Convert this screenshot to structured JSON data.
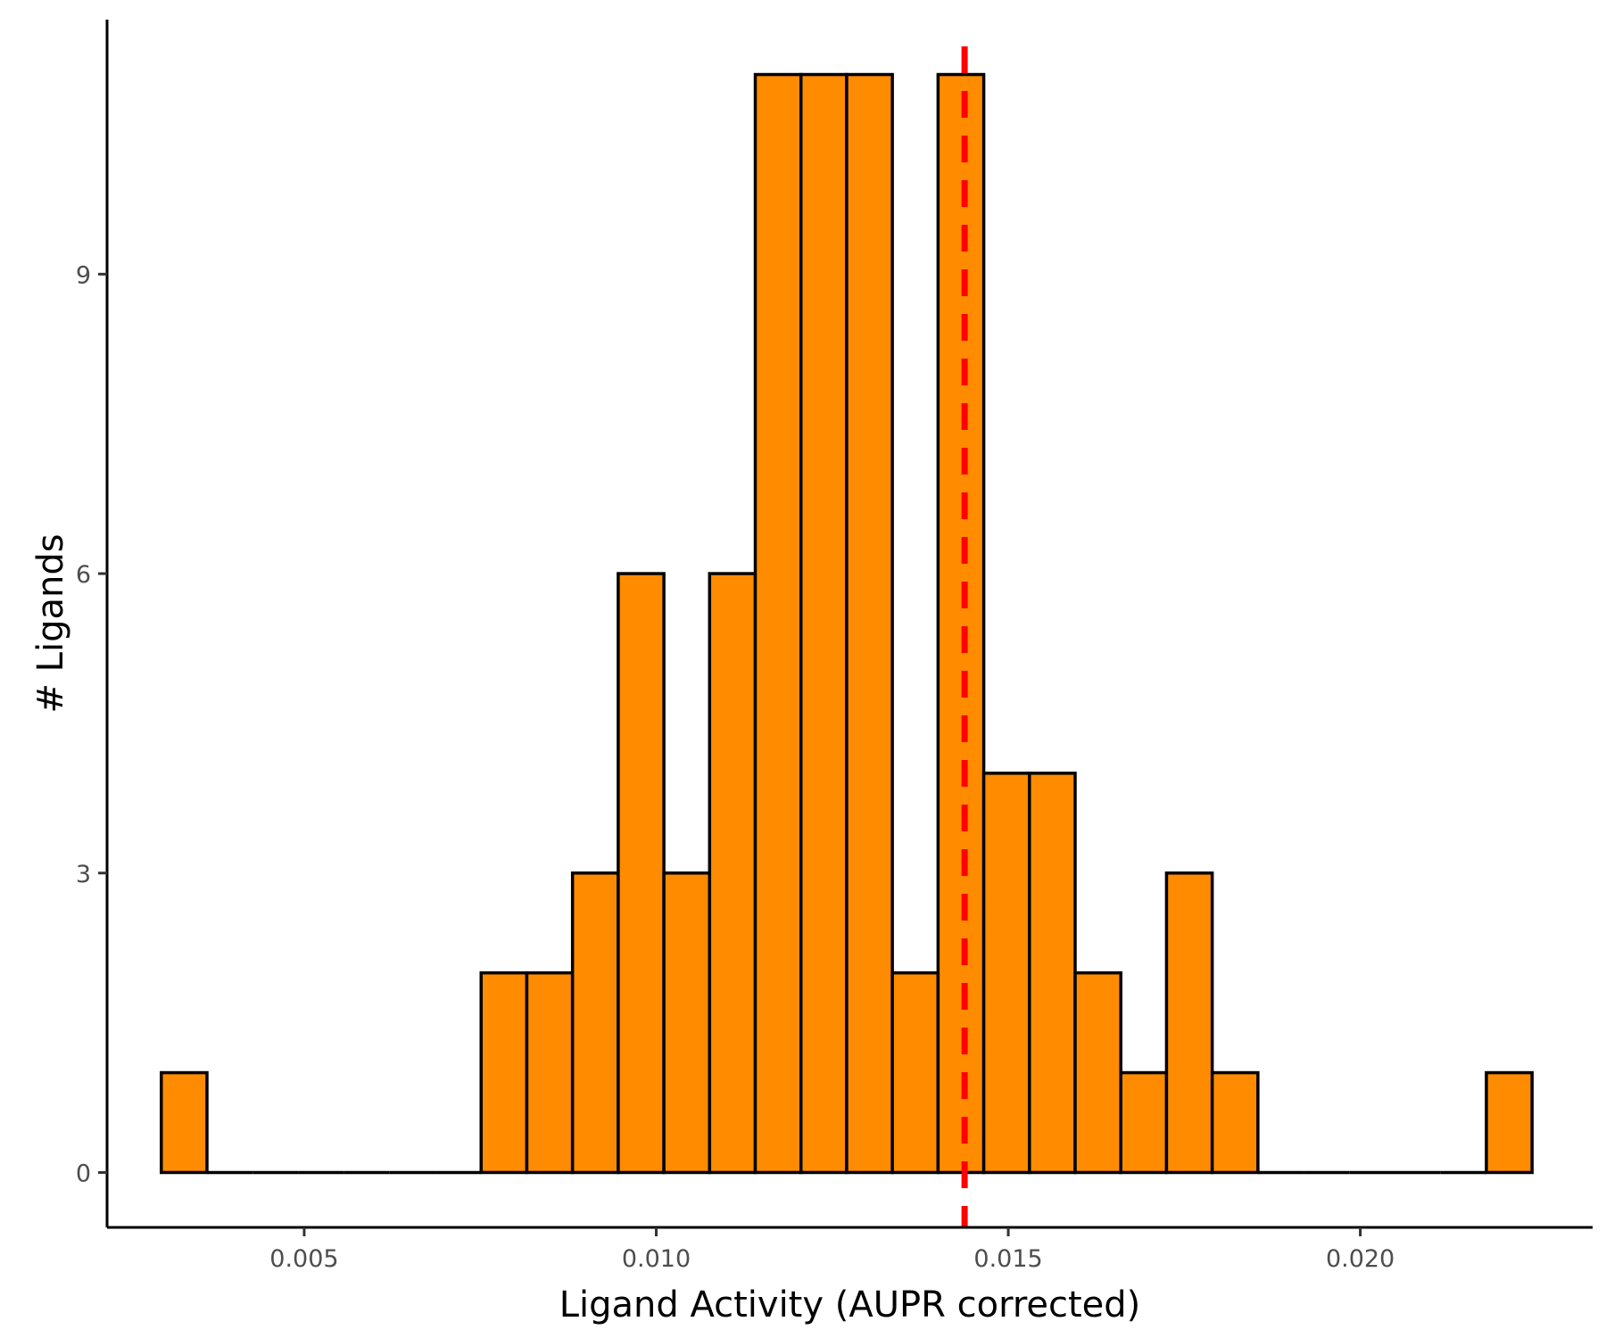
{
  "chart_data": {
    "type": "bar",
    "subtype": "histogram",
    "xlabel": "Ligand Activity (AUPR corrected)",
    "ylabel": "# Ligands",
    "xlim": [
      0.0022,
      0.0233
    ],
    "ylim": [
      -0.55,
      11.55
    ],
    "x_ticks": [
      0.005,
      0.01,
      0.015,
      0.02
    ],
    "x_tick_labels": [
      "0.005",
      "0.010",
      "0.015",
      "0.020"
    ],
    "y_ticks": [
      0,
      3,
      6,
      9
    ],
    "y_tick_labels": [
      "0",
      "3",
      "6",
      "9"
    ],
    "bin_start": 0.00297,
    "bin_width": 0.000649,
    "counts": [
      1,
      0,
      0,
      0,
      0,
      0,
      0,
      2,
      2,
      3,
      6,
      3,
      6,
      11,
      11,
      11,
      2,
      11,
      4,
      4,
      2,
      1,
      3,
      1,
      0,
      0,
      0,
      0,
      0,
      1
    ],
    "bar_color": "#FF8C00",
    "bar_outline": "#000000",
    "vline": {
      "x": 0.01438,
      "color": "#FF0000",
      "style": "dashed"
    },
    "grid": false,
    "legend": "none"
  }
}
